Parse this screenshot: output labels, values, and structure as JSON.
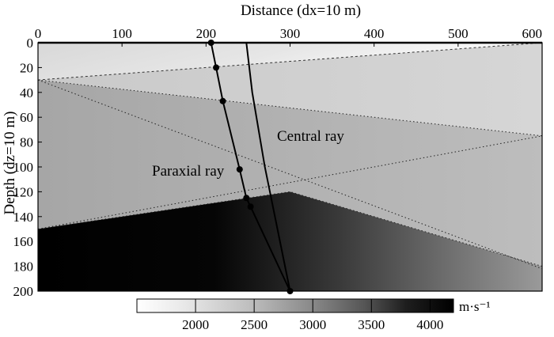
{
  "chart_data": {
    "type": "contour",
    "top_axis": {
      "label": "Distance (dx=10 m)",
      "ticks": [
        0,
        100,
        200,
        300,
        400,
        500,
        600
      ],
      "xlim": [
        0,
        600
      ]
    },
    "left_axis": {
      "label": "Depth (dz=10 m)",
      "ticks": [
        0,
        20,
        40,
        60,
        80,
        100,
        120,
        140,
        160,
        180,
        200
      ],
      "ylim": [
        0,
        200
      ],
      "inverted": true
    },
    "layers": [
      {
        "name": "layer-1",
        "color": "#f2f2f2"
      },
      {
        "name": "layer-2",
        "color": "#dcdcdc"
      },
      {
        "name": "layer-3",
        "color": "#b8b8b8"
      },
      {
        "name": "layer-4",
        "color": "#0a0a0a"
      }
    ],
    "interfaces": [
      {
        "name": "interface-1",
        "points": [
          [
            0,
            30
          ],
          [
            600,
            0
          ]
        ]
      },
      {
        "name": "interface-2",
        "points": [
          [
            0,
            30
          ],
          [
            600,
            75
          ]
        ]
      },
      {
        "name": "interface-3",
        "points": [
          [
            0,
            150
          ],
          [
            300,
            120
          ],
          [
            600,
            180
          ]
        ]
      }
    ],
    "dotted_lines": [
      {
        "name": "dotted-1",
        "points": [
          [
            0,
            30
          ],
          [
            600,
            182
          ]
        ]
      },
      {
        "name": "dotted-2",
        "points": [
          [
            0,
            150
          ],
          [
            600,
            75
          ]
        ]
      }
    ],
    "central_ray": {
      "label": "Central ray",
      "points": [
        [
          248,
          0
        ],
        [
          255,
          40
        ],
        [
          270,
          100
        ],
        [
          300,
          200
        ]
      ]
    },
    "paraxial_ray": {
      "label": "Paraxial ray",
      "points": [
        [
          206,
          0
        ],
        [
          212,
          20
        ],
        [
          220,
          47
        ],
        [
          240,
          102
        ],
        [
          248,
          125
        ],
        [
          253,
          132
        ],
        [
          300,
          200
        ]
      ],
      "markers": [
        [
          206,
          0
        ],
        [
          212,
          20
        ],
        [
          220,
          47
        ],
        [
          240,
          102
        ],
        [
          248,
          125
        ],
        [
          253,
          132
        ],
        [
          300,
          200
        ]
      ]
    },
    "colorbar": {
      "unit": "m·s⁻¹",
      "tick_labels": [
        "2000",
        "2500",
        "3000",
        "3500",
        "4000"
      ],
      "tick_values": [
        2000,
        2500,
        3000,
        3500,
        4000
      ],
      "range": [
        1500,
        4200
      ]
    }
  }
}
